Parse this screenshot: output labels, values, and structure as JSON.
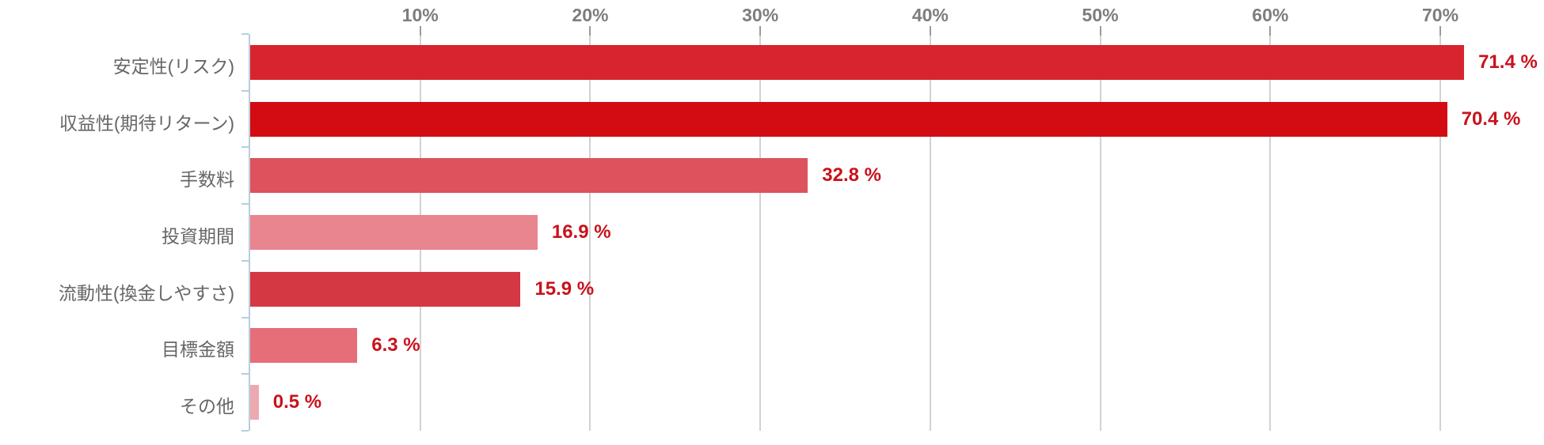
{
  "chart_data": {
    "type": "bar",
    "orientation": "horizontal",
    "title": "",
    "categories": [
      "安定性(リスク)",
      "収益性(期待リターン)",
      "手数料",
      "投資期間",
      "流動性(換金しやすさ)",
      "目標金額",
      "その他"
    ],
    "values": [
      71.4,
      70.4,
      32.8,
      16.9,
      15.9,
      6.3,
      0.5
    ],
    "value_labels": [
      "71.4 %",
      "70.4 %",
      "32.8 %",
      "16.9 %",
      "15.9 %",
      "6.3 %",
      "0.5 %"
    ],
    "bar_colors": [
      "#d7242e",
      "#d30b12",
      "#dd525c",
      "#e8858f",
      "#d43843",
      "#e56e78",
      "#eca9b0"
    ],
    "x_axis": {
      "position": "top",
      "tick_labels": [
        "10%",
        "20%",
        "30%",
        "40%",
        "50%",
        "60%",
        "70%"
      ],
      "tick_values": [
        10,
        20,
        30,
        40,
        50,
        60,
        70
      ],
      "min": 0,
      "max": 76.1,
      "grid": true
    },
    "ylabel": "",
    "xlabel": "",
    "legend": null
  },
  "style": {
    "background_color": "#ffffff",
    "gridline_color": "#d2d2d2",
    "axis_line_color": "#b7cedf",
    "top_tick_color": "#9a9a9a",
    "tick_label_color": "#7d7d7d",
    "category_label_color": "#666666",
    "value_label_color": "#c9121c"
  }
}
